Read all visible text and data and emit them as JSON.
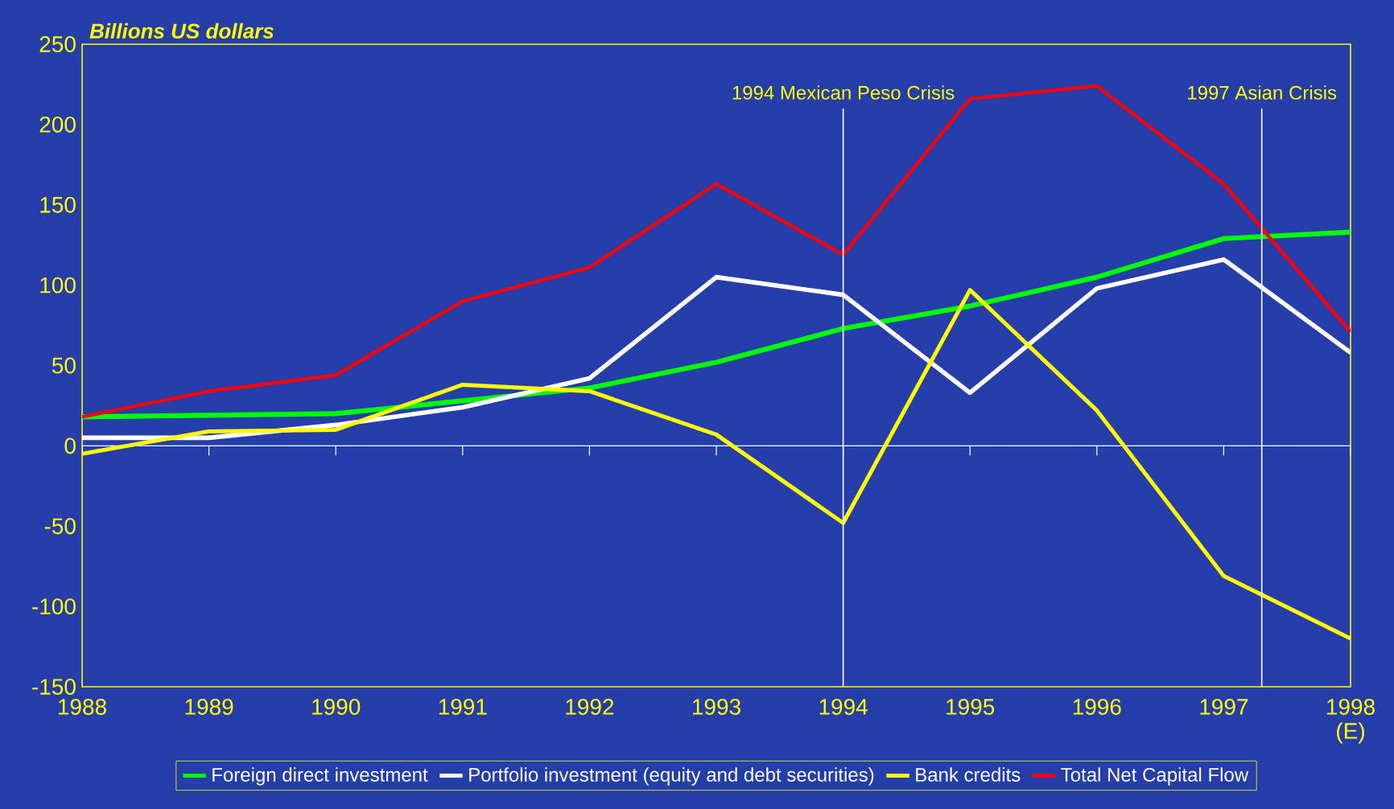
{
  "chart_data": {
    "type": "line",
    "ylabel": "Billions US dollars",
    "x": [
      1988,
      1989,
      1990,
      1991,
      1992,
      1993,
      1994,
      1995,
      1996,
      1997,
      1998
    ],
    "xlim": [
      1988,
      1998
    ],
    "xticks": [
      1988,
      1989,
      1990,
      1991,
      1992,
      1993,
      1994,
      1995,
      1996,
      1997,
      {
        "value": 1998,
        "label": "1998 (E)"
      }
    ],
    "ylim": [
      -150,
      250
    ],
    "yticks": [
      -150,
      -100,
      -50,
      0,
      50,
      100,
      150,
      200,
      250
    ],
    "grid": false,
    "legend": "bottom",
    "marker": "none",
    "line_style": "solid",
    "series": [
      {
        "name": "Foreign direct investment",
        "color": "#00ff00",
        "values": [
          18,
          19,
          20,
          28,
          36,
          52,
          73,
          87,
          105,
          129,
          133
        ]
      },
      {
        "name": "Portfolio investment (equity and debt securities)",
        "color": "#ffffff",
        "values": [
          5,
          5,
          13,
          24,
          42,
          105,
          94,
          33,
          98,
          116,
          58
        ]
      },
      {
        "name": "Bank credits",
        "color": "#ffff00",
        "values": [
          -5,
          9,
          10,
          38,
          34,
          7,
          -48,
          97,
          22,
          -81,
          -120
        ]
      },
      {
        "name": "Total Net Capital Flow",
        "color": "#ff0000",
        "values": [
          18,
          34,
          44,
          90,
          111,
          163,
          119,
          216,
          224,
          163,
          71
        ]
      }
    ],
    "ref_lines": [
      {
        "axis": "x",
        "value": 1994,
        "label": "1994 Mexican Peso Crisis",
        "color": "#ffffff"
      },
      {
        "axis": "x",
        "value": 1997.3,
        "label": "1997 Asian Crisis",
        "color": "#ffffff"
      }
    ]
  }
}
